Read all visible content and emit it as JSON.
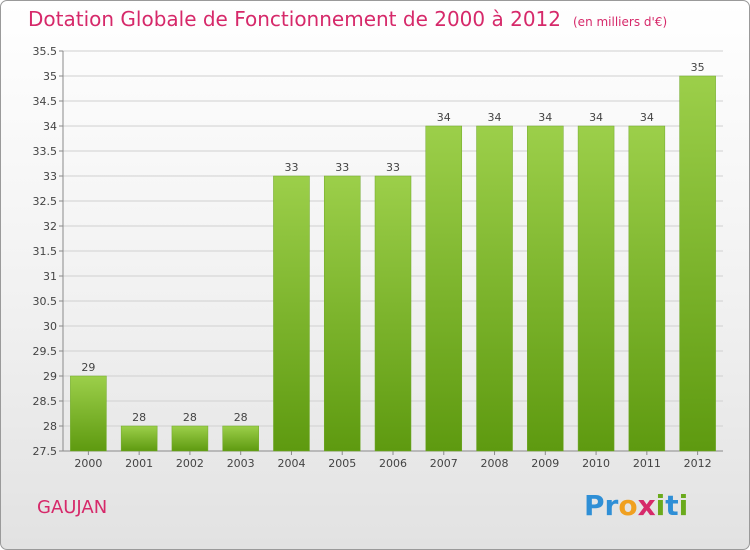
{
  "title": "Dotation Globale de Fonctionnement de 2000 à 2012",
  "unit": "(en milliers d'€)",
  "commune": "GAUJAN",
  "logo": "Proxiti",
  "colors": {
    "title": "#d6296a",
    "bar_top": "#9ccf4a",
    "bar_bottom": "#5e9a10",
    "grid": "#d0d0d0"
  },
  "chart_data": {
    "type": "bar",
    "title": "Dotation Globale de Fonctionnement de 2000 à 2012",
    "subtitle": "(en milliers d'€)",
    "categories": [
      "2000",
      "2001",
      "2002",
      "2003",
      "2004",
      "2005",
      "2006",
      "2007",
      "2008",
      "2009",
      "2010",
      "2011",
      "2012"
    ],
    "values": [
      29,
      28,
      28,
      28,
      33,
      33,
      33,
      34,
      34,
      34,
      34,
      34,
      35
    ],
    "ylim": [
      27.5,
      35.5
    ],
    "yticks": [
      "27.5",
      "28",
      "28.5",
      "29",
      "29.5",
      "30",
      "30.5",
      "31",
      "31.5",
      "32",
      "32.5",
      "33",
      "33.5",
      "34",
      "34.5",
      "35",
      "35.5"
    ],
    "grid": true
  }
}
